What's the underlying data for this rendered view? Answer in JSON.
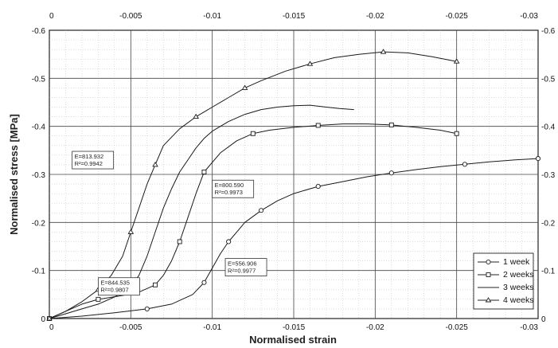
{
  "chart_data": {
    "type": "line",
    "xlabel": "Normalised strain",
    "ylabel": "Normalised stress [MPa]",
    "xlim": [
      0,
      -0.03
    ],
    "ylim": [
      0,
      -0.6
    ],
    "x_ticks": [
      "0",
      "-0.005",
      "-0.01",
      "-0.015",
      "-0.02",
      "-0.025",
      "-0.03"
    ],
    "y_ticks_left": [
      "0",
      "-0.1",
      "-0.2",
      "-0.3",
      "-0.4",
      "-0.5",
      "-0.6"
    ],
    "y_ticks_right": [
      "0",
      "-0.1",
      "-0.2",
      "-0.3",
      "-0.4",
      "-0.5",
      "-0.6"
    ],
    "grid": true,
    "legend_position": "bottom-right",
    "series": [
      {
        "name": "1 week",
        "marker": "circle",
        "x": [
          0,
          -0.002,
          -0.004,
          -0.006,
          -0.0075,
          -0.0088,
          -0.0095,
          -0.01,
          -0.0105,
          -0.011,
          -0.0115,
          -0.012,
          -0.013,
          -0.014,
          -0.015,
          -0.0165,
          -0.018,
          -0.0195,
          -0.021,
          -0.0225,
          -0.024,
          -0.0255,
          -0.027,
          -0.0285,
          -0.03
        ],
        "y": [
          0,
          -0.005,
          -0.012,
          -0.02,
          -0.03,
          -0.05,
          -0.075,
          -0.105,
          -0.135,
          -0.16,
          -0.18,
          -0.2,
          -0.225,
          -0.245,
          -0.26,
          -0.275,
          -0.285,
          -0.295,
          -0.303,
          -0.31,
          -0.316,
          -0.321,
          -0.326,
          -0.33,
          -0.333
        ]
      },
      {
        "name": "2 weeks",
        "marker": "square",
        "x": [
          0,
          -0.001,
          -0.002,
          -0.003,
          -0.0045,
          -0.0055,
          -0.0065,
          -0.007,
          -0.0075,
          -0.008,
          -0.0085,
          -0.009,
          -0.0095,
          -0.0105,
          -0.0115,
          -0.0125,
          -0.0135,
          -0.015,
          -0.0165,
          -0.018,
          -0.0195,
          -0.021,
          -0.0225,
          -0.024,
          -0.025
        ],
        "y": [
          0,
          -0.015,
          -0.03,
          -0.04,
          -0.048,
          -0.055,
          -0.07,
          -0.09,
          -0.12,
          -0.16,
          -0.21,
          -0.26,
          -0.305,
          -0.345,
          -0.37,
          -0.385,
          -0.392,
          -0.398,
          -0.402,
          -0.405,
          -0.405,
          -0.403,
          -0.398,
          -0.392,
          -0.385
        ]
      },
      {
        "name": "3 weeks",
        "marker": "none",
        "x": [
          0,
          -0.001,
          -0.002,
          -0.003,
          -0.004,
          -0.005,
          -0.0055,
          -0.006,
          -0.0065,
          -0.007,
          -0.0075,
          -0.008,
          -0.0085,
          -0.009,
          -0.0095,
          -0.01,
          -0.011,
          -0.012,
          -0.013,
          -0.014,
          -0.015,
          -0.016,
          -0.017,
          -0.0178,
          -0.0187
        ],
        "y": [
          0,
          -0.01,
          -0.02,
          -0.03,
          -0.045,
          -0.065,
          -0.09,
          -0.13,
          -0.18,
          -0.23,
          -0.27,
          -0.305,
          -0.33,
          -0.355,
          -0.375,
          -0.39,
          -0.41,
          -0.425,
          -0.435,
          -0.44,
          -0.443,
          -0.444,
          -0.44,
          -0.437,
          -0.435
        ]
      },
      {
        "name": "4 weeks",
        "marker": "triangle",
        "x": [
          0,
          -0.001,
          -0.002,
          -0.003,
          -0.0038,
          -0.0045,
          -0.005,
          -0.0055,
          -0.006,
          -0.0065,
          -0.007,
          -0.008,
          -0.009,
          -0.01,
          -0.011,
          -0.012,
          -0.013,
          -0.0145,
          -0.016,
          -0.0175,
          -0.019,
          -0.0205,
          -0.022,
          -0.0235,
          -0.025
        ],
        "y": [
          0,
          -0.015,
          -0.035,
          -0.06,
          -0.09,
          -0.13,
          -0.18,
          -0.23,
          -0.28,
          -0.32,
          -0.36,
          -0.395,
          -0.42,
          -0.44,
          -0.46,
          -0.48,
          -0.495,
          -0.515,
          -0.53,
          -0.543,
          -0.55,
          -0.555,
          -0.553,
          -0.545,
          -0.535
        ]
      }
    ],
    "annotations": [
      {
        "line1": "E=813.932",
        "line2": "R²=0.9942",
        "x": -0.0014,
        "y": -0.348
      },
      {
        "line1": "E=800.590",
        "line2": "R²=0.9973",
        "x": -0.01,
        "y": -0.288
      },
      {
        "line1": "E=844.535",
        "line2": "R²=0.9807",
        "x": -0.003,
        "y": -0.085
      },
      {
        "line1": "E=556.906",
        "line2": "R²=0.9977",
        "x": -0.0108,
        "y": -0.125
      }
    ]
  }
}
